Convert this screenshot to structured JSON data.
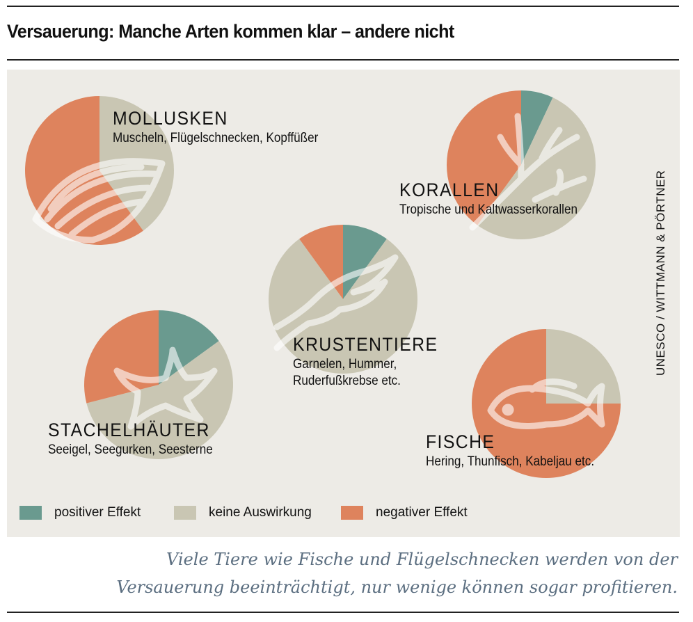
{
  "title": "Versauerung: Manche Arten kommen klar – andere nicht",
  "source": "UNESCO / WITTMANN & PÖRTNER",
  "colors": {
    "positive": "#6a9a8f",
    "neutral": "#c9c6b3",
    "negative": "#de835d",
    "background": "#edebe6",
    "caption": "#5b6e80"
  },
  "legend": [
    {
      "label": "positiver Effekt",
      "color": "#6a9a8f"
    },
    {
      "label": "keine Auswirkung",
      "color": "#c9c6b3"
    },
    {
      "label": "negativer Effekt",
      "color": "#de835d"
    }
  ],
  "caption": [
    "Viele Tiere wie Fische und Flügelschnecken werden von der",
    "Versauerung beeinträchtigt, nur wenige können sogar profitieren."
  ],
  "chart_data": {
    "type": "pie",
    "series_order": [
      "positiver Effekt",
      "keine Auswirkung",
      "negativer Effekt"
    ],
    "pies": [
      {
        "name": "MOLLUSKEN",
        "subtitle": "Muscheln, Flügelschnecken, Kopffüßer",
        "icon": "clam-shell-icon",
        "values": [
          0,
          40,
          60
        ]
      },
      {
        "name": "KORALLEN",
        "subtitle": "Tropische und Kaltwasserkorallen",
        "icon": "coral-icon",
        "values": [
          7,
          53,
          40
        ]
      },
      {
        "name": "KRUSTENTIERE",
        "subtitle": "Garnelen, Hummer,",
        "subtitle2": "Ruderfußkrebse etc.",
        "icon": "lobster-claw-icon",
        "values": [
          10,
          80,
          10
        ]
      },
      {
        "name": "STACHELHÄUTER",
        "subtitle": "Seeigel, Seegurken, Seesterne",
        "icon": "starfish-icon",
        "values": [
          15,
          56,
          29
        ]
      },
      {
        "name": "FISCHE",
        "subtitle": "Hering, Thunfisch, Kabeljau etc.",
        "icon": "fish-icon",
        "values": [
          0,
          25,
          75
        ]
      }
    ]
  }
}
